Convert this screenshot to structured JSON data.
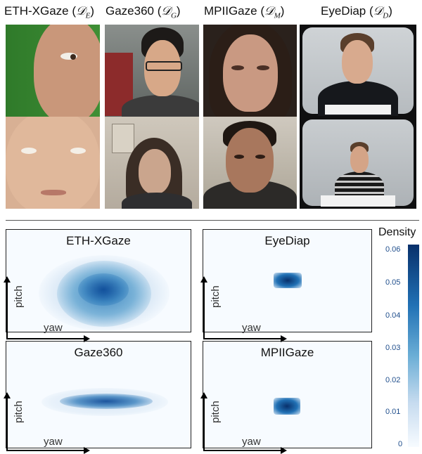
{
  "headers": {
    "eth": {
      "name": "ETH-XGaze",
      "symbol": "𝒟",
      "sub": "E"
    },
    "gaze360": {
      "name": "Gaze360",
      "symbol": "𝒟",
      "sub": "G"
    },
    "mpii": {
      "name": "MPIIGaze",
      "symbol": "𝒟",
      "sub": "M"
    },
    "eyediap": {
      "name": "EyeDiap",
      "symbol": "𝒟",
      "sub": "D"
    }
  },
  "panels": {
    "eth": {
      "title": "ETH-XGaze",
      "xlabel": "yaw",
      "ylabel": "pitch"
    },
    "eyediap": {
      "title": "EyeDiap",
      "xlabel": "yaw",
      "ylabel": "pitch"
    },
    "gaze360": {
      "title": "Gaze360",
      "xlabel": "yaw",
      "ylabel": "pitch"
    },
    "mpii": {
      "title": "MPIIGaze",
      "xlabel": "yaw",
      "ylabel": "pitch"
    }
  },
  "colorbar": {
    "title": "Density",
    "ticks": [
      "0.06",
      "0.05",
      "0.04",
      "0.03",
      "0.02",
      "0.01",
      "0"
    ],
    "colors": [
      "#08306b",
      "#2171b5",
      "#6baed6",
      "#c6dbef",
      "#f7fbff"
    ]
  }
}
